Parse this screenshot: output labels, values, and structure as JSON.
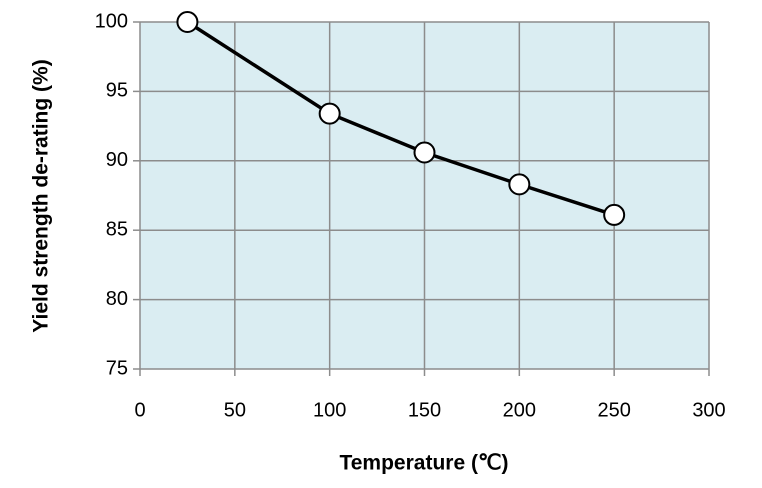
{
  "chart_data": {
    "type": "line",
    "x_label": "Temperature (℃)",
    "y_label": "Yield strength de-rating (%)",
    "x": [
      25,
      100,
      150,
      200,
      250
    ],
    "series": [
      {
        "color": "#000000",
        "values": [
          100,
          93.4,
          90.6,
          88.3,
          86.1
        ]
      }
    ],
    "xlim": [
      0,
      300
    ],
    "xticks": [
      0,
      50,
      100,
      150,
      200,
      250,
      300
    ],
    "ylim": [
      75,
      100
    ],
    "yticks": [
      75,
      80,
      85,
      90,
      95,
      100
    ],
    "grid": true
  }
}
